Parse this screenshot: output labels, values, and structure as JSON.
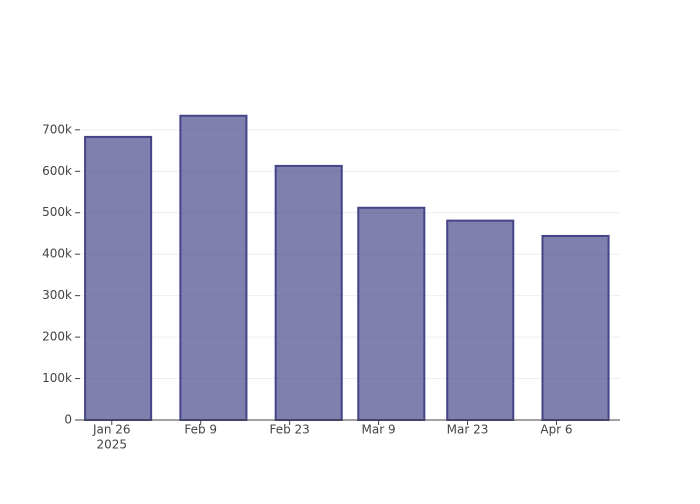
{
  "chart_data": {
    "type": "bar",
    "x": [
      "2025-01-27",
      "2025-02-11",
      "2025-02-26",
      "2025-03-11",
      "2025-03-25",
      "2025-04-09"
    ],
    "values": [
      683000,
      734000,
      613000,
      512000,
      481000,
      444000
    ],
    "color": "#444488",
    "bar_width_days": 10.4,
    "xlim": [
      "2025-01-21",
      "2025-04-16"
    ],
    "xticks": [
      {
        "value": "2025-01-26",
        "label": "Jan 26"
      },
      {
        "value": "2025-02-09",
        "label": "Feb 9"
      },
      {
        "value": "2025-02-23",
        "label": "Feb 23"
      },
      {
        "value": "2025-03-09",
        "label": "Mar 9"
      },
      {
        "value": "2025-03-23",
        "label": "Mar 23"
      },
      {
        "value": "2025-04-06",
        "label": "Apr 6"
      }
    ],
    "xtick_year": "2025",
    "ylim": [
      0,
      772000
    ],
    "yticks": [
      0,
      {
        "value": 100000,
        "label": "100k"
      },
      {
        "value": 200000,
        "label": "200k"
      },
      {
        "value": 300000,
        "label": "300k"
      },
      {
        "value": 400000,
        "label": "400k"
      },
      {
        "value": 500000,
        "label": "500k"
      },
      {
        "value": 600000,
        "label": "600k"
      },
      {
        "value": 700000,
        "label": "700k"
      }
    ],
    "grid": true
  }
}
